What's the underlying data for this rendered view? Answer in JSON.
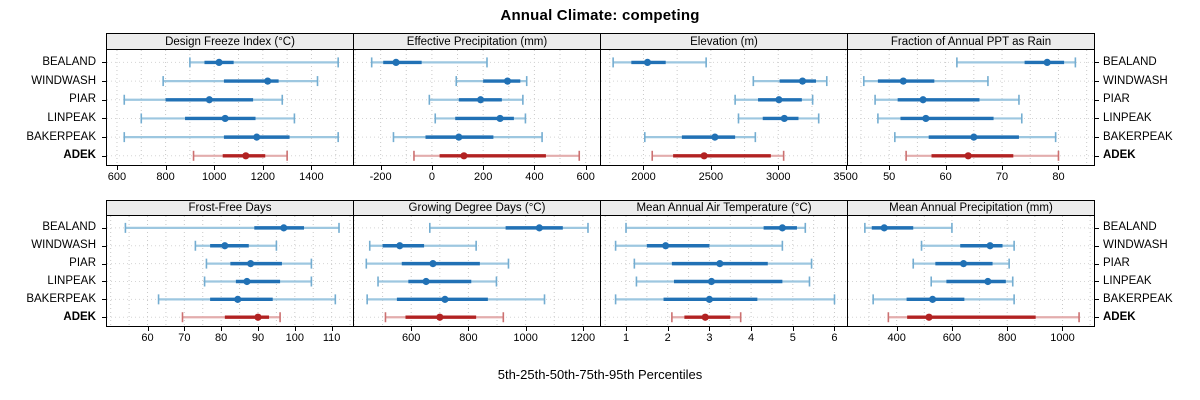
{
  "title": "Annual Climate: competing",
  "footer_xlabel": "5th-25th-50th-75th-95th Percentiles",
  "stations": [
    "BEALAND",
    "WINDWASH",
    "PIAR",
    "LINPEAK",
    "BAKERPEAK",
    "ADEK"
  ],
  "highlight_station": "ADEK",
  "colors": {
    "blue": "#2171b5",
    "blue_light": "#9dc7e0",
    "blue_cap": "#74add1",
    "red": "#b22222",
    "red_light": "#e3adad",
    "red_cap": "#cc7070",
    "strip_bg": "#ececec",
    "grid": "#c9c9c9",
    "row_guide": "#d5d5d5"
  },
  "chart_data": {
    "type": "scatter",
    "subtype": "dot-and-interval trellis (5th/25th/50th/75th/95th percentiles per station)",
    "percentile_labels": [
      "5th",
      "25th",
      "50th",
      "75th",
      "95th"
    ],
    "title": "Annual Climate: competing",
    "xlabel": "5th-25th-50th-75th-95th Percentiles",
    "grid": "dotted",
    "layout": "2 rows x 4 columns of panels; station labels on left and right; ADEK highlighted in red",
    "panels": [
      {
        "label": "Design Freeze Index (°C)",
        "row": 0,
        "xlim": [
          559,
          1571
        ],
        "ticks": [
          600,
          800,
          1000,
          1200,
          1400
        ],
        "grid_step": 100,
        "values": {
          "BEALAND": [
            900,
            960,
            1020,
            1080,
            1510
          ],
          "WINDWASH": [
            790,
            1040,
            1220,
            1265,
            1425
          ],
          "PIAR": [
            630,
            800,
            980,
            1160,
            1280
          ],
          "LINPEAK": [
            700,
            880,
            1045,
            1170,
            1330
          ],
          "BAKERPEAK": [
            630,
            1040,
            1175,
            1310,
            1510
          ],
          "ADEK": [
            915,
            1035,
            1130,
            1210,
            1300
          ]
        }
      },
      {
        "label": "Effective Precipitation (mm)",
        "row": 0,
        "xlim": [
          -304,
          656
        ],
        "ticks": [
          -200,
          0,
          200,
          400,
          600
        ],
        "grid_step": 100,
        "values": {
          "BEALAND": [
            -235,
            -190,
            -140,
            -40,
            215
          ],
          "WINDWASH": [
            95,
            200,
            295,
            345,
            370
          ],
          "PIAR": [
            -10,
            105,
            190,
            273,
            355
          ],
          "LINPEAK": [
            13,
            91,
            266,
            320,
            365
          ],
          "BAKERPEAK": [
            -150,
            -25,
            105,
            240,
            430
          ],
          "ADEK": [
            -70,
            30,
            125,
            445,
            575
          ]
        }
      },
      {
        "label": "Elevation (m)",
        "row": 0,
        "xlim": [
          1685,
          3510
        ],
        "ticks": [
          2000,
          2500,
          3000,
          3500
        ],
        "grid_step": 250,
        "values": {
          "BEALAND": [
            1775,
            1910,
            2030,
            2165,
            2465
          ],
          "WINDWASH": [
            2815,
            3010,
            3180,
            3280,
            3360
          ],
          "PIAR": [
            2680,
            2850,
            3005,
            3175,
            3255
          ],
          "LINPEAK": [
            2705,
            2885,
            3045,
            3150,
            3300
          ],
          "BAKERPEAK": [
            2010,
            2285,
            2530,
            2680,
            2830
          ],
          "ADEK": [
            2065,
            2220,
            2450,
            2945,
            3040
          ]
        }
      },
      {
        "label": "Fraction of Annual PPT as Rain",
        "row": 0,
        "xlim": [
          42.7,
          86.3
        ],
        "ticks": [
          50,
          60,
          70,
          80
        ],
        "grid_step": 5,
        "values": {
          "BEALAND": [
            62,
            74,
            78,
            81,
            83
          ],
          "WINDWASH": [
            45.5,
            48,
            52.5,
            58,
            67.5
          ],
          "PIAR": [
            47.5,
            51.5,
            56,
            66,
            73
          ],
          "LINPEAK": [
            48,
            52,
            56.5,
            68.5,
            73.5
          ],
          "BAKERPEAK": [
            51,
            57,
            65,
            73,
            79.5
          ],
          "ADEK": [
            53,
            57.5,
            64,
            72,
            80
          ]
        }
      },
      {
        "label": "Frost-Free Days",
        "row": 1,
        "xlim": [
          49,
          115.8
        ],
        "ticks": [
          60,
          70,
          80,
          90,
          100,
          110
        ],
        "grid_step": 5,
        "values": {
          "BEALAND": [
            54,
            89,
            97,
            102.5,
            112
          ],
          "WINDWASH": [
            73,
            77,
            81,
            87.5,
            95
          ],
          "PIAR": [
            76,
            82.5,
            88,
            96.5,
            104.5
          ],
          "LINPEAK": [
            75.5,
            84,
            87,
            96,
            104.5
          ],
          "BAKERPEAK": [
            63,
            77,
            84.5,
            94,
            111
          ],
          "ADEK": [
            69.5,
            81,
            90,
            93,
            96
          ]
        }
      },
      {
        "label": "Growing Degree Days (°C)",
        "row": 1,
        "xlim": [
          400,
          1260
        ],
        "ticks": [
          600,
          800,
          1000,
          1200
        ],
        "grid_step": 100,
        "values": {
          "BEALAND": [
            665,
            930,
            1048,
            1130,
            1218
          ],
          "WINDWASH": [
            455,
            500,
            560,
            645,
            827
          ],
          "PIAR": [
            443,
            567,
            676,
            840,
            940
          ],
          "LINPEAK": [
            484,
            590,
            652,
            810,
            898
          ],
          "BAKERPEAK": [
            446,
            550,
            718,
            868,
            1066
          ],
          "ADEK": [
            510,
            580,
            700,
            827,
            922
          ]
        }
      },
      {
        "label": "Mean Annual Air Temperature (°C)",
        "row": 1,
        "xlim": [
          0.4,
          6.3
        ],
        "ticks": [
          1,
          2,
          3,
          4,
          5,
          6
        ],
        "grid_step": 0.5,
        "values": {
          "BEALAND": [
            1.0,
            4.3,
            4.75,
            5.1,
            5.3
          ],
          "WINDWASH": [
            0.75,
            1.5,
            1.95,
            3.0,
            4.75
          ],
          "PIAR": [
            1.2,
            2.1,
            3.25,
            4.4,
            5.45
          ],
          "LINPEAK": [
            1.25,
            2.15,
            3.05,
            4.75,
            5.4
          ],
          "BAKERPEAK": [
            0.75,
            1.9,
            3.0,
            4.15,
            6.0
          ],
          "ADEK": [
            2.1,
            2.4,
            2.9,
            3.5,
            3.75
          ]
        }
      },
      {
        "label": "Mean Annual Precipitation (mm)",
        "row": 1,
        "xlim": [
          224,
          1114
        ],
        "ticks": [
          400,
          600,
          800,
          1000
        ],
        "grid_step": 100,
        "values": {
          "BEALAND": [
            285,
            310,
            355,
            460,
            600
          ],
          "WINDWASH": [
            490,
            630,
            738,
            783,
            825
          ],
          "PIAR": [
            460,
            540,
            642,
            747,
            807
          ],
          "LINPEAK": [
            525,
            580,
            730,
            795,
            820
          ],
          "BAKERPEAK": [
            315,
            436,
            530,
            645,
            825
          ],
          "ADEK": [
            370,
            438,
            517,
            903,
            1060
          ]
        }
      }
    ]
  }
}
